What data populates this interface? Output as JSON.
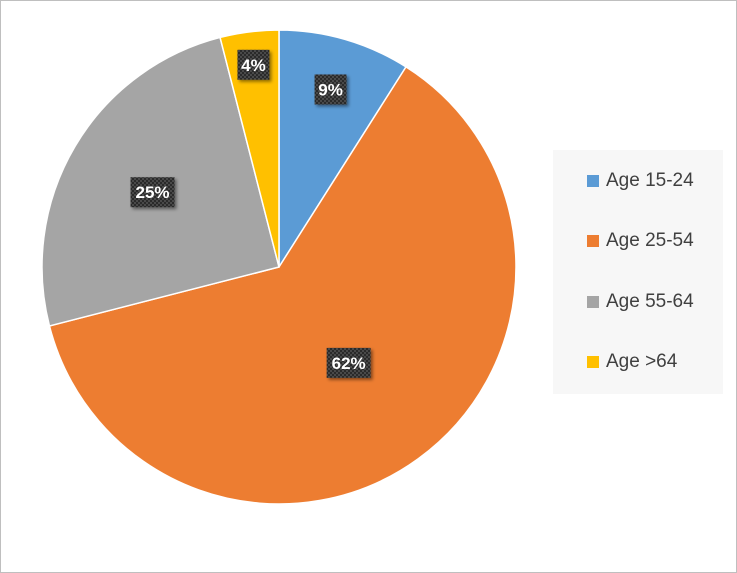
{
  "chart_data": {
    "type": "pie",
    "categories": [
      "Age 15-24",
      "Age 25-54",
      "Age 55-64",
      "Age >64"
    ],
    "values": [
      9,
      62,
      25,
      4
    ],
    "labels": [
      "9%",
      "62%",
      "25%",
      "4%"
    ],
    "colors": [
      "#5b9bd5",
      "#ed7d31",
      "#a5a5a5",
      "#ffc000"
    ],
    "legend_position": "right",
    "title": ""
  }
}
